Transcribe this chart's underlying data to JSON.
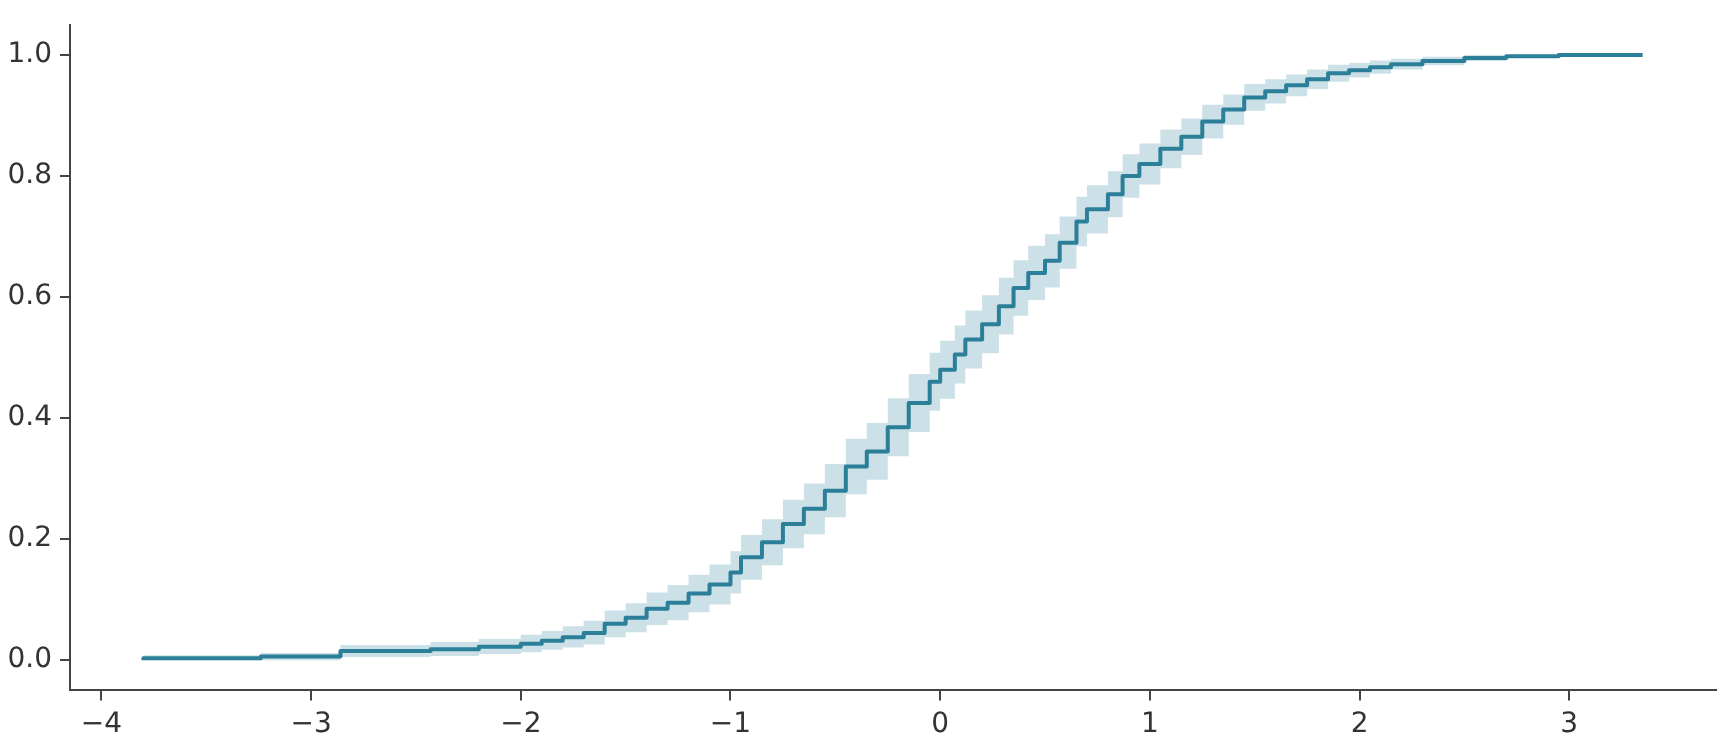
{
  "chart_data": {
    "type": "step",
    "xlim": [
      -4.15,
      3.7
    ],
    "ylim": [
      -0.05,
      1.05
    ],
    "xticks": [
      {
        "value": -4,
        "label": "−4"
      },
      {
        "value": -3,
        "label": "−3"
      },
      {
        "value": -2,
        "label": "−2"
      },
      {
        "value": -1,
        "label": "−1"
      },
      0,
      1,
      2,
      3
    ],
    "yticks": [
      {
        "value": 0,
        "label": "0.0"
      },
      {
        "value": 0.2,
        "label": "0.2"
      },
      {
        "value": 0.4,
        "label": "0.4"
      },
      {
        "value": 0.6,
        "label": "0.6"
      },
      {
        "value": 0.8,
        "label": "0.8"
      },
      {
        "value": 1,
        "label": "1.0"
      }
    ],
    "grid": false,
    "legend": false,
    "marker": "none",
    "line_style": "solid",
    "series": [
      {
        "color": "#2b7f99",
        "x": [
          -3.8,
          -3.24,
          -2.86,
          -2.43,
          -2.2,
          -2.0,
          -1.9,
          -1.8,
          -1.7,
          -1.6,
          -1.5,
          -1.4,
          -1.3,
          -1.2,
          -1.1,
          -1.0,
          -0.95,
          -0.85,
          -0.75,
          -0.65,
          -0.55,
          -0.45,
          -0.35,
          -0.25,
          -0.15,
          -0.05,
          0,
          0.07,
          0.12,
          0.2,
          0.28,
          0.35,
          0.42,
          0.5,
          0.57,
          0.65,
          0.7,
          0.8,
          0.87,
          0.95,
          1.05,
          1.15,
          1.25,
          1.35,
          1.45,
          1.55,
          1.65,
          1.75,
          1.85,
          1.95,
          2.05,
          2.15,
          2.3,
          2.5,
          2.7,
          2.95,
          3.35
        ],
        "values": [
          0,
          0.003,
          0.006,
          0.015,
          0.018,
          0.022,
          0.027,
          0.032,
          0.038,
          0.045,
          0.06,
          0.07,
          0.085,
          0.095,
          0.11,
          0.125,
          0.145,
          0.17,
          0.195,
          0.225,
          0.25,
          0.28,
          0.32,
          0.345,
          0.385,
          0.425,
          0.46,
          0.48,
          0.505,
          0.53,
          0.555,
          0.585,
          0.615,
          0.64,
          0.66,
          0.69,
          0.725,
          0.745,
          0.77,
          0.8,
          0.82,
          0.845,
          0.865,
          0.89,
          0.91,
          0.93,
          0.94,
          0.95,
          0.96,
          0.97,
          0.975,
          0.98,
          0.985,
          0.99,
          0.995,
          0.998,
          1.0
        ],
        "lower": [
          0,
          0,
          0,
          0.005,
          0.007,
          0.01,
          0.013,
          0.017,
          0.021,
          0.026,
          0.038,
          0.046,
          0.058,
          0.066,
          0.079,
          0.092,
          0.11,
          0.133,
          0.157,
          0.185,
          0.208,
          0.236,
          0.274,
          0.298,
          0.337,
          0.377,
          0.412,
          0.432,
          0.457,
          0.482,
          0.507,
          0.538,
          0.569,
          0.595,
          0.616,
          0.647,
          0.684,
          0.705,
          0.732,
          0.764,
          0.786,
          0.813,
          0.835,
          0.862,
          0.885,
          0.908,
          0.92,
          0.932,
          0.944,
          0.956,
          0.963,
          0.969,
          0.976,
          0.983,
          0.99,
          0.995,
          1.0
        ],
        "upper": [
          0,
          0.008,
          0.012,
          0.025,
          0.03,
          0.035,
          0.042,
          0.048,
          0.056,
          0.065,
          0.082,
          0.094,
          0.112,
          0.124,
          0.141,
          0.158,
          0.18,
          0.207,
          0.233,
          0.265,
          0.292,
          0.324,
          0.366,
          0.392,
          0.433,
          0.473,
          0.508,
          0.528,
          0.553,
          0.578,
          0.603,
          0.632,
          0.661,
          0.685,
          0.704,
          0.733,
          0.766,
          0.785,
          0.808,
          0.836,
          0.854,
          0.877,
          0.895,
          0.918,
          0.935,
          0.952,
          0.96,
          0.968,
          0.976,
          0.984,
          0.987,
          0.991,
          0.994,
          0.997,
          1.0,
          1.0,
          1.0
        ]
      }
    ]
  }
}
